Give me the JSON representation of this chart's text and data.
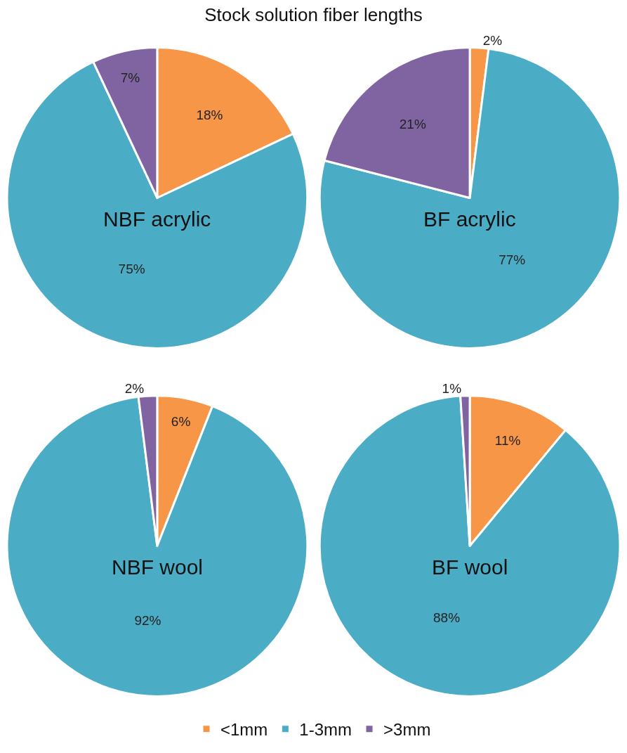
{
  "chart_data": {
    "type": "pie",
    "title": "Stock solution fiber lengths",
    "categories": [
      "<1mm",
      "1-3mm",
      ">3mm"
    ],
    "colors": [
      "#f79646",
      "#4bacc6",
      "#8064a2"
    ],
    "legend": "bottom",
    "series": [
      {
        "name": "NBF acrylic",
        "values": [
          18,
          75,
          7
        ],
        "value_labels": [
          "18%",
          "75%",
          "7%"
        ]
      },
      {
        "name": "BF acrylic",
        "values": [
          2,
          77,
          21
        ],
        "value_labels": [
          "2%",
          "77%",
          "21%"
        ]
      },
      {
        "name": "NBF wool",
        "values": [
          6,
          92,
          2
        ],
        "value_labels": [
          "6%",
          "92%",
          "2%"
        ]
      },
      {
        "name": "BF wool",
        "values": [
          11,
          88,
          1
        ],
        "value_labels": [
          "11%",
          "88%",
          "1%"
        ]
      }
    ]
  }
}
